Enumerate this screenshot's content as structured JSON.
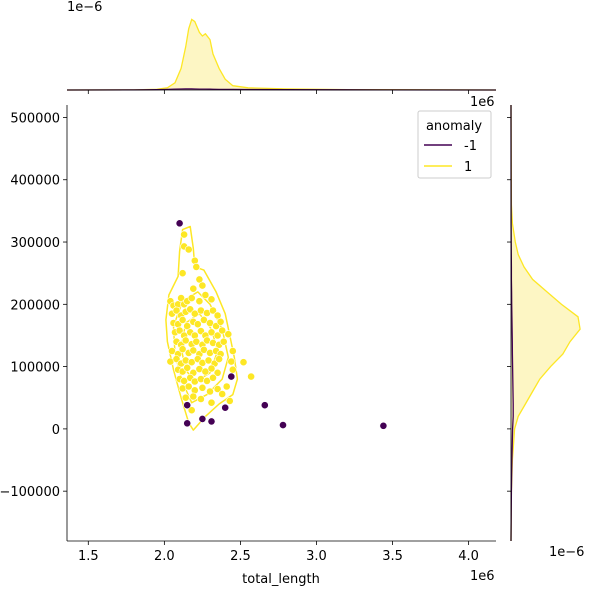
{
  "chart_data": {
    "type": "scatter",
    "title": "",
    "xlabel": "total_length",
    "ylabel": "",
    "x_offset_text": "1e6",
    "y_offset_text": "",
    "top_density_offset_text": "1e−6",
    "right_density_top_offset_text": "1e6",
    "right_density_bottom_offset_text": "1e−6",
    "xlim": [
      1.36,
      4.18
    ],
    "ylim": [
      -180000,
      520000
    ],
    "x_ticks": [
      1.5,
      2.0,
      2.5,
      3.0,
      3.5,
      4.0
    ],
    "x_tick_labels": [
      "1.5",
      "2.0",
      "2.5",
      "3.0",
      "3.5",
      "4.0"
    ],
    "y_ticks": [
      -100000,
      0,
      100000,
      200000,
      300000,
      400000,
      500000
    ],
    "y_tick_labels": [
      "−100000",
      "0",
      "100000",
      "200000",
      "300000",
      "400000",
      "500000"
    ],
    "grid": false,
    "legend": {
      "title": "anomaly",
      "placement": "top-right",
      "entries": [
        {
          "label": "-1",
          "color": "#440154"
        },
        {
          "label": "1",
          "color": "#fde725"
        }
      ]
    },
    "colors": {
      "anomaly": "#440154",
      "normal": "#fde725",
      "normal_fill": "#fdf6c4"
    },
    "series": [
      {
        "key": "-1",
        "points": [
          [
            2.1,
            330000
          ],
          [
            2.15,
            38000
          ],
          [
            2.15,
            9000
          ],
          [
            2.25,
            16000
          ],
          [
            2.31,
            12000
          ],
          [
            2.4,
            34000
          ],
          [
            2.44,
            84000
          ],
          [
            2.66,
            38000
          ],
          [
            2.78,
            6000
          ],
          [
            3.44,
            5000
          ]
        ]
      },
      {
        "key": "1",
        "points": [
          [
            2.13,
            312000
          ],
          [
            2.13,
            293000
          ],
          [
            2.16,
            288000
          ],
          [
            2.2,
            270000
          ],
          [
            2.21,
            260000
          ],
          [
            2.23,
            240000
          ],
          [
            2.25,
            230000
          ],
          [
            2.12,
            250000
          ],
          [
            2.19,
            225000
          ],
          [
            2.04,
            205000
          ],
          [
            2.06,
            198000
          ],
          [
            2.09,
            200000
          ],
          [
            2.11,
            210000
          ],
          [
            2.13,
            200000
          ],
          [
            2.15,
            205000
          ],
          [
            2.18,
            210000
          ],
          [
            2.23,
            205000
          ],
          [
            2.27,
            215000
          ],
          [
            2.31,
            208000
          ],
          [
            2.05,
            185000
          ],
          [
            2.08,
            190000
          ],
          [
            2.11,
            182000
          ],
          [
            2.14,
            188000
          ],
          [
            2.17,
            192000
          ],
          [
            2.2,
            185000
          ],
          [
            2.24,
            190000
          ],
          [
            2.28,
            186000
          ],
          [
            2.32,
            190000
          ],
          [
            2.35,
            182000
          ],
          [
            2.06,
            170000
          ],
          [
            2.09,
            168000
          ],
          [
            2.12,
            175000
          ],
          [
            2.15,
            165000
          ],
          [
            2.19,
            172000
          ],
          [
            2.22,
            168000
          ],
          [
            2.26,
            175000
          ],
          [
            2.3,
            170000
          ],
          [
            2.34,
            165000
          ],
          [
            2.37,
            172000
          ],
          [
            2.07,
            155000
          ],
          [
            2.1,
            158000
          ],
          [
            2.13,
            150000
          ],
          [
            2.17,
            155000
          ],
          [
            2.2,
            150000
          ],
          [
            2.24,
            157000
          ],
          [
            2.27,
            150000
          ],
          [
            2.31,
            155000
          ],
          [
            2.35,
            150000
          ],
          [
            2.38,
            158000
          ],
          [
            2.42,
            152000
          ],
          [
            2.08,
            140000
          ],
          [
            2.11,
            135000
          ],
          [
            2.14,
            142000
          ],
          [
            2.18,
            136000
          ],
          [
            2.21,
            140000
          ],
          [
            2.25,
            135000
          ],
          [
            2.28,
            142000
          ],
          [
            2.32,
            138000
          ],
          [
            2.36,
            135000
          ],
          [
            2.39,
            140000
          ],
          [
            2.05,
            125000
          ],
          [
            2.09,
            120000
          ],
          [
            2.12,
            128000
          ],
          [
            2.16,
            122000
          ],
          [
            2.19,
            126000
          ],
          [
            2.23,
            120000
          ],
          [
            2.26,
            127000
          ],
          [
            2.3,
            122000
          ],
          [
            2.34,
            125000
          ],
          [
            2.37,
            120000
          ],
          [
            2.45,
            125000
          ],
          [
            2.04,
            108000
          ],
          [
            2.08,
            112000
          ],
          [
            2.11,
            105000
          ],
          [
            2.14,
            110000
          ],
          [
            2.18,
            107000
          ],
          [
            2.22,
            112000
          ],
          [
            2.25,
            106000
          ],
          [
            2.29,
            110000
          ],
          [
            2.33,
            105000
          ],
          [
            2.36,
            112000
          ],
          [
            2.44,
            108000
          ],
          [
            2.52,
            107000
          ],
          [
            2.09,
            95000
          ],
          [
            2.12,
            92000
          ],
          [
            2.15,
            98000
          ],
          [
            2.19,
            90000
          ],
          [
            2.23,
            96000
          ],
          [
            2.27,
            92000
          ],
          [
            2.31,
            97000
          ],
          [
            2.35,
            90000
          ],
          [
            2.45,
            95000
          ],
          [
            2.1,
            80000
          ],
          [
            2.13,
            77000
          ],
          [
            2.17,
            82000
          ],
          [
            2.2,
            76000
          ],
          [
            2.24,
            80000
          ],
          [
            2.28,
            77000
          ],
          [
            2.32,
            82000
          ],
          [
            2.57,
            84000
          ],
          [
            2.12,
            65000
          ],
          [
            2.16,
            68000
          ],
          [
            2.2,
            62000
          ],
          [
            2.25,
            66000
          ],
          [
            2.3,
            60000
          ],
          [
            2.35,
            64000
          ],
          [
            2.41,
            68000
          ],
          [
            2.14,
            50000
          ],
          [
            2.19,
            52000
          ],
          [
            2.24,
            48000
          ],
          [
            2.31,
            42000
          ],
          [
            2.38,
            56000
          ],
          [
            2.43,
            45000
          ],
          [
            2.18,
            30000
          ]
        ]
      }
    ],
    "kde_contours": [
      {
        "level": "outer",
        "points": [
          [
            2.19,
            -2000
          ],
          [
            2.27,
            20000
          ],
          [
            2.36,
            40000
          ],
          [
            2.45,
            55000
          ],
          [
            2.48,
            80000
          ],
          [
            2.46,
            115000
          ],
          [
            2.43,
            150000
          ],
          [
            2.4,
            185000
          ],
          [
            2.34,
            220000
          ],
          [
            2.26,
            255000
          ],
          [
            2.2,
            260000
          ],
          [
            2.19,
            290000
          ],
          [
            2.17,
            325000
          ],
          [
            2.12,
            320000
          ],
          [
            2.1,
            285000
          ],
          [
            2.09,
            245000
          ],
          [
            2.03,
            215000
          ],
          [
            2.01,
            175000
          ],
          [
            2.02,
            140000
          ],
          [
            2.06,
            95000
          ],
          [
            2.11,
            50000
          ],
          [
            2.16,
            10000
          ]
        ]
      },
      {
        "level": "mid",
        "points": [
          [
            2.18,
            42000
          ],
          [
            2.28,
            55000
          ],
          [
            2.38,
            80000
          ],
          [
            2.42,
            115000
          ],
          [
            2.38,
            160000
          ],
          [
            2.3,
            200000
          ],
          [
            2.22,
            220000
          ],
          [
            2.12,
            205000
          ],
          [
            2.06,
            165000
          ],
          [
            2.07,
            120000
          ],
          [
            2.12,
            75000
          ]
        ]
      },
      {
        "level": "inner",
        "points": [
          [
            2.2,
            75000
          ],
          [
            2.3,
            90000
          ],
          [
            2.35,
            125000
          ],
          [
            2.31,
            160000
          ],
          [
            2.23,
            185000
          ],
          [
            2.14,
            170000
          ],
          [
            2.11,
            130000
          ],
          [
            2.14,
            95000
          ]
        ]
      }
    ],
    "top_density": {
      "x": [
        1.36,
        1.8,
        1.95,
        2.02,
        2.07,
        2.11,
        2.14,
        2.16,
        2.18,
        2.2,
        2.23,
        2.25,
        2.27,
        2.3,
        2.32,
        2.36,
        2.4,
        2.45,
        2.55,
        2.8,
        3.2,
        4.18
      ],
      "density": [
        0,
        0.002,
        0.01,
        0.03,
        0.1,
        0.3,
        0.6,
        0.85,
        0.98,
        0.95,
        0.8,
        0.75,
        0.78,
        0.7,
        0.5,
        0.3,
        0.15,
        0.06,
        0.03,
        0.015,
        0.005,
        0
      ],
      "anomaly_density": [
        0,
        0.002,
        0.005,
        0.008,
        0.012,
        0.014,
        0.015,
        0.015,
        0.015,
        0.014,
        0.013,
        0.012,
        0.012,
        0.011,
        0.01,
        0.009,
        0.008,
        0.008,
        0.007,
        0.005,
        0.003,
        0
      ]
    },
    "right_density": {
      "y": [
        -180000,
        -100000,
        -50000,
        0,
        20000,
        40000,
        60000,
        80000,
        100000,
        120000,
        140000,
        160000,
        180000,
        200000,
        220000,
        240000,
        260000,
        280000,
        300000,
        330000,
        360000,
        520000
      ],
      "density": [
        0,
        0.005,
        0.02,
        0.05,
        0.1,
        0.2,
        0.3,
        0.4,
        0.55,
        0.72,
        0.82,
        0.96,
        0.93,
        0.7,
        0.5,
        0.3,
        0.18,
        0.1,
        0.06,
        0.02,
        0.005,
        0
      ],
      "anomaly_density": [
        0,
        0.005,
        0.012,
        0.022,
        0.03,
        0.03,
        0.028,
        0.025,
        0.022,
        0.02,
        0.018,
        0.015,
        0.013,
        0.01,
        0.008,
        0.006,
        0.005,
        0.004,
        0.003,
        0.002,
        0.001,
        0
      ]
    }
  }
}
